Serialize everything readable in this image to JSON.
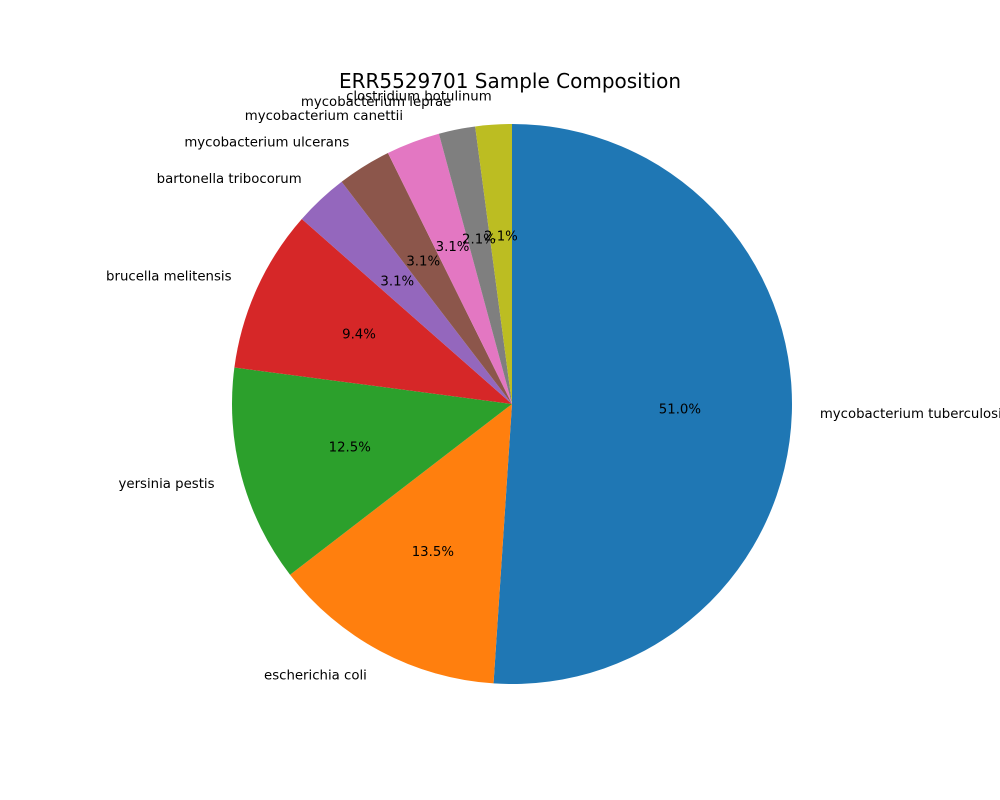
{
  "chart_data": {
    "type": "pie",
    "title": "ERR5529701 Sample Composition",
    "start_angle_deg": 90,
    "direction": "clockwise",
    "slices": [
      {
        "label": "mycobacterium tuberculosis",
        "value": 51.0,
        "pct_label": "51.0%",
        "color": "#1f77b4"
      },
      {
        "label": "escherichia coli",
        "value": 13.5,
        "pct_label": "13.5%",
        "color": "#ff7f0e"
      },
      {
        "label": "yersinia pestis",
        "value": 12.5,
        "pct_label": "12.5%",
        "color": "#2ca02c"
      },
      {
        "label": "brucella melitensis",
        "value": 9.4,
        "pct_label": "9.4%",
        "color": "#d62728"
      },
      {
        "label": "bartonella tribocorum",
        "value": 3.1,
        "pct_label": "3.1%",
        "color": "#9467bd"
      },
      {
        "label": "mycobacterium ulcerans",
        "value": 3.1,
        "pct_label": "3.1%",
        "color": "#8c564b"
      },
      {
        "label": "mycobacterium canettii",
        "value": 3.1,
        "pct_label": "3.1%",
        "color": "#e377c2"
      },
      {
        "label": "mycobacterium leprae",
        "value": 2.1,
        "pct_label": "2.1%",
        "color": "#7f7f7f"
      },
      {
        "label": "clostridium botulinum",
        "value": 2.1,
        "pct_label": "2.1%",
        "color": "#bcbd22"
      }
    ]
  }
}
